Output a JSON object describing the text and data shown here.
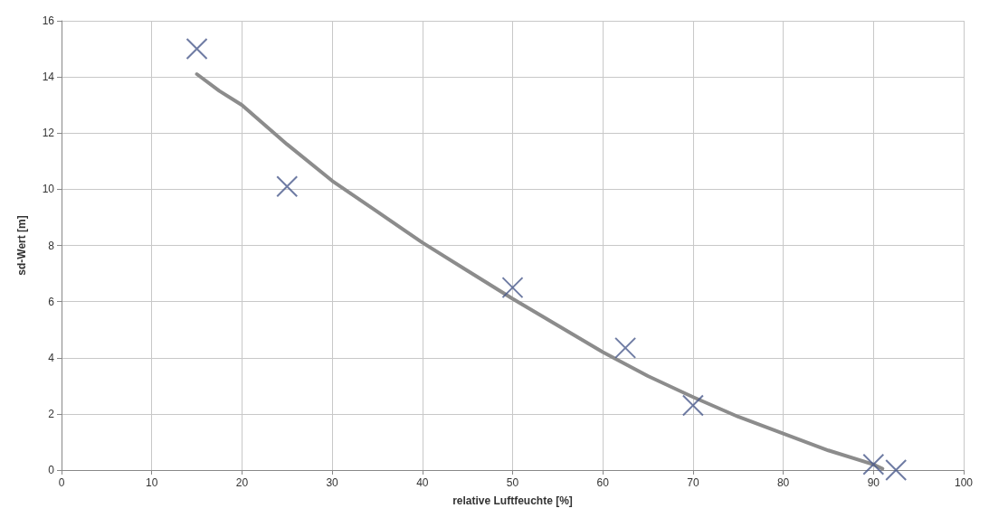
{
  "chart_data": {
    "type": "scatter",
    "xlabel": "relative Luftfeuchte [%]",
    "ylabel": "sd-Wert [m]",
    "xlim": [
      0,
      100
    ],
    "xticks": [
      0,
      10,
      20,
      30,
      40,
      50,
      60,
      70,
      80,
      90,
      100
    ],
    "ylim": [
      0,
      16
    ],
    "yticks": [
      0,
      2,
      4,
      6,
      8,
      10,
      12,
      14,
      16
    ],
    "grid": true,
    "series": [
      {
        "type": "line",
        "color": "#8c8c8c",
        "marker": "none",
        "line_style": "solid",
        "x": [
          15,
          17.5,
          20,
          25,
          30,
          35,
          40,
          45,
          50,
          55,
          60,
          65,
          70,
          75,
          80,
          85,
          90,
          91
        ],
        "values": [
          14.1,
          13.5,
          13.0,
          11.6,
          10.3,
          9.2,
          8.1,
          7.1,
          6.1,
          5.15,
          4.2,
          3.35,
          2.6,
          1.9,
          1.3,
          0.7,
          0.2,
          0.05
        ]
      },
      {
        "color": "#4a5a8c",
        "marker": "cross",
        "x": [
          15,
          25,
          50,
          62.5,
          70,
          90,
          92.5
        ],
        "values": [
          15,
          10.1,
          6.5,
          4.35,
          2.3,
          0.2,
          0
        ]
      }
    ]
  }
}
